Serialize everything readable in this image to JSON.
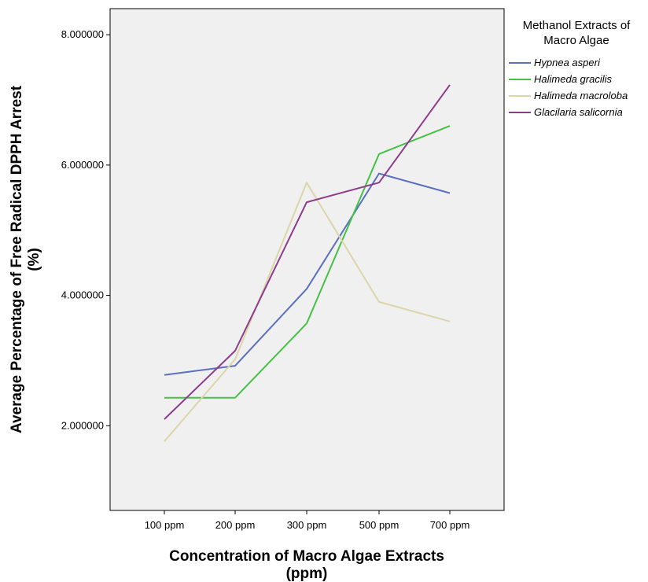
{
  "chart_data": {
    "type": "line",
    "xlabel_line1": "Concentration of Macro Algae Extracts",
    "xlabel_line2": "(ppm)",
    "ylabel_line1": "Average Percentage of Free Radical DPPH Arrest",
    "ylabel_line2": "(%)",
    "categories": [
      "100 ppm",
      "200 ppm",
      "300 ppm",
      "500 ppm",
      "700 ppm"
    ],
    "yticks": [
      "2.000000",
      "4.000000",
      "6.000000",
      "8.000000"
    ],
    "ylim": [
      0.7,
      8.4
    ],
    "grid": false,
    "legend": {
      "title_line1": "Methanol Extracts of",
      "title_line2": "Macro Algae",
      "position": "right"
    },
    "series": [
      {
        "name": "Hypnea asperi",
        "color": "#5b6fbf",
        "values": [
          2.78,
          2.92,
          4.1,
          5.87,
          5.57
        ]
      },
      {
        "name": "Halimeda gracilis",
        "color": "#45c145",
        "values": [
          2.43,
          2.43,
          3.57,
          6.17,
          6.6
        ]
      },
      {
        "name": "Halimeda macroloba",
        "color": "#dcd5a8",
        "values": [
          1.76,
          3.02,
          5.73,
          3.9,
          3.6
        ]
      },
      {
        "name": "Glacilaria salicornia",
        "color": "#8d3c8d",
        "values": [
          2.1,
          3.15,
          5.43,
          5.73,
          7.23
        ]
      }
    ],
    "colors": {
      "plot_background": "#f0f0f0",
      "frame": "#000000"
    }
  }
}
